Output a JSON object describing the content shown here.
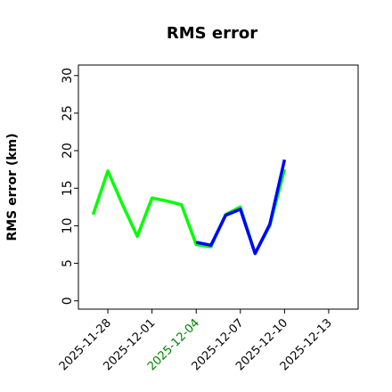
{
  "chart_data": {
    "type": "line",
    "title": "RMS error",
    "y_label": "RMS error (km)",
    "x": [
      "2025-11-27",
      "2025-11-28",
      "2025-11-29",
      "2025-11-30",
      "2025-12-01",
      "2025-12-02",
      "2025-12-03",
      "2025-12-04",
      "2025-12-05",
      "2025-12-06",
      "2025-12-07",
      "2025-12-08",
      "2025-12-09",
      "2025-12-10"
    ],
    "series": [
      {
        "color": "#00ff00",
        "values": [
          11.5,
          17.3,
          12.8,
          8.6,
          13.7,
          13.3,
          12.8,
          7.5,
          7.2,
          11.5,
          12.5,
          6.3,
          10.0,
          17.5
        ]
      },
      {
        "color": "#0000ff",
        "values": [
          null,
          null,
          null,
          null,
          null,
          null,
          null,
          7.8,
          7.4,
          11.4,
          12.2,
          6.3,
          10.2,
          18.8
        ]
      }
    ],
    "xlim": [
      "2025-11-26",
      "2025-12-15"
    ],
    "xticks": [
      "2025-11-28",
      "2025-12-01",
      "2025-12-04",
      "2025-12-07",
      "2025-12-10",
      "2025-12-13"
    ],
    "xtick_label_colors": [
      "#000000",
      "#000000",
      "#008000",
      "#000000",
      "#000000",
      "#000000"
    ],
    "ylim": [
      -1.1,
      31.4
    ],
    "yticks": [
      0,
      5,
      10,
      15,
      20,
      25,
      30
    ],
    "grid": false
  }
}
